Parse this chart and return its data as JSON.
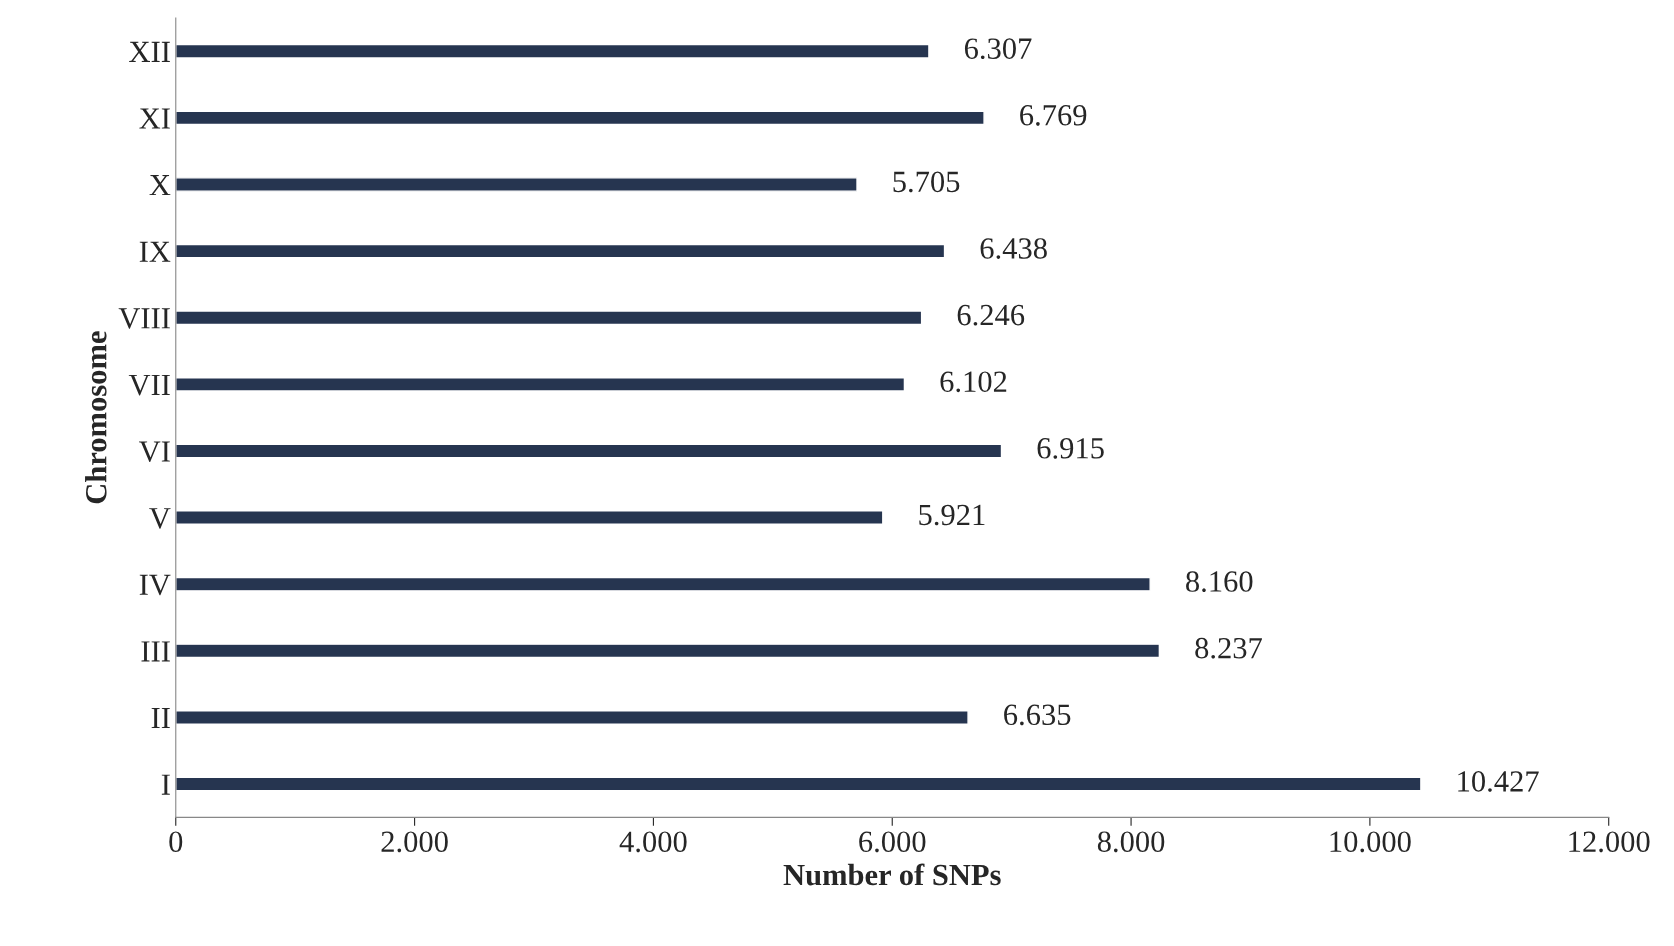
{
  "chart_data": {
    "type": "bar",
    "orientation": "horizontal",
    "xlabel": "Number of SNPs",
    "ylabel": "Chromosome",
    "categories": [
      "XII",
      "XI",
      "X",
      "IX",
      "VIII",
      "VII",
      "VI",
      "V",
      "IV",
      "III",
      "II",
      "I"
    ],
    "values": [
      6307,
      6769,
      5705,
      6438,
      6246,
      6102,
      6915,
      5921,
      8160,
      8237,
      6635,
      10427
    ],
    "value_labels": [
      "6.307",
      "6.769",
      "5.705",
      "6.438",
      "6.246",
      "6.102",
      "6.915",
      "5.921",
      "8.160",
      "8.237",
      "6.635",
      "10.427"
    ],
    "color": "#263550",
    "xlim": [
      0,
      12000
    ],
    "xticks": [
      0,
      {
        "value": 2000,
        "label": "2.000"
      },
      {
        "value": 4000,
        "label": "4.000"
      },
      {
        "value": 6000,
        "label": "6.000"
      },
      {
        "value": 8000,
        "label": "8.000"
      },
      {
        "value": 10000,
        "label": "10.000"
      },
      {
        "value": 12000,
        "label": "12.000"
      }
    ],
    "grid": false,
    "legend": false
  }
}
